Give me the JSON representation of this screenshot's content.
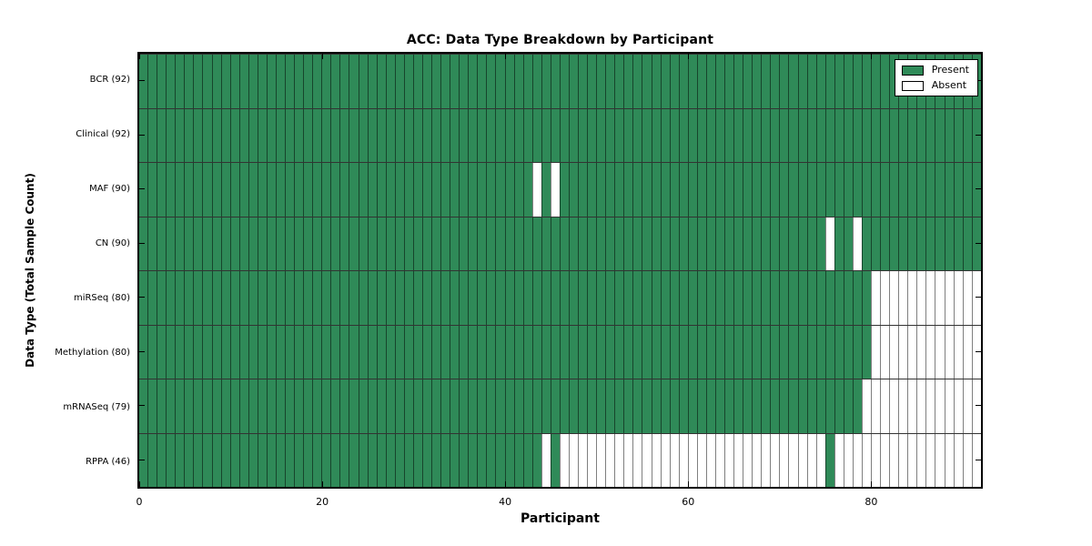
{
  "chart_data": {
    "type": "heatmap",
    "title": "ACC: Data Type Breakdown by Participant",
    "xlabel": "Participant",
    "ylabel": "Data Type (Total Sample Count)",
    "n_participants": 92,
    "xlim": [
      0,
      92
    ],
    "x_ticks": [
      0,
      20,
      40,
      60,
      80
    ],
    "grid": "per-cell edges",
    "legend": {
      "position": "upper right",
      "entries": [
        {
          "label": "Present",
          "color": "#2F8A58"
        },
        {
          "label": "Absent",
          "color": "#FFFFFF"
        }
      ]
    },
    "colors": {
      "present": "#2F8A58",
      "absent": "#FFFFFF",
      "cell_edge": "rgba(0,0,0,0.5)",
      "frame": "#000000"
    },
    "rows": [
      {
        "label": "BCR (92)",
        "name": "BCR",
        "present_count": 92,
        "absent_ranges": []
      },
      {
        "label": "Clinical (92)",
        "name": "Clinical",
        "present_count": 92,
        "absent_ranges": []
      },
      {
        "label": "MAF (90)",
        "name": "MAF",
        "present_count": 90,
        "absent_ranges": [
          [
            43,
            43
          ],
          [
            45,
            45
          ]
        ]
      },
      {
        "label": "CN (90)",
        "name": "CN",
        "present_count": 90,
        "absent_ranges": [
          [
            75,
            75
          ],
          [
            78,
            78
          ]
        ]
      },
      {
        "label": "miRSeq (80)",
        "name": "miRSeq",
        "present_count": 80,
        "absent_ranges": [
          [
            80,
            91
          ]
        ]
      },
      {
        "label": "Methylation (80)",
        "name": "Methylation",
        "present_count": 80,
        "absent_ranges": [
          [
            80,
            91
          ]
        ]
      },
      {
        "label": "mRNASeq (79)",
        "name": "mRNASeq",
        "present_count": 79,
        "absent_ranges": [
          [
            79,
            91
          ]
        ]
      },
      {
        "label": "RPPA (46)",
        "name": "RPPA",
        "present_count": 46,
        "absent_ranges": [
          [
            44,
            44
          ],
          [
            46,
            74
          ],
          [
            76,
            91
          ]
        ]
      }
    ]
  }
}
